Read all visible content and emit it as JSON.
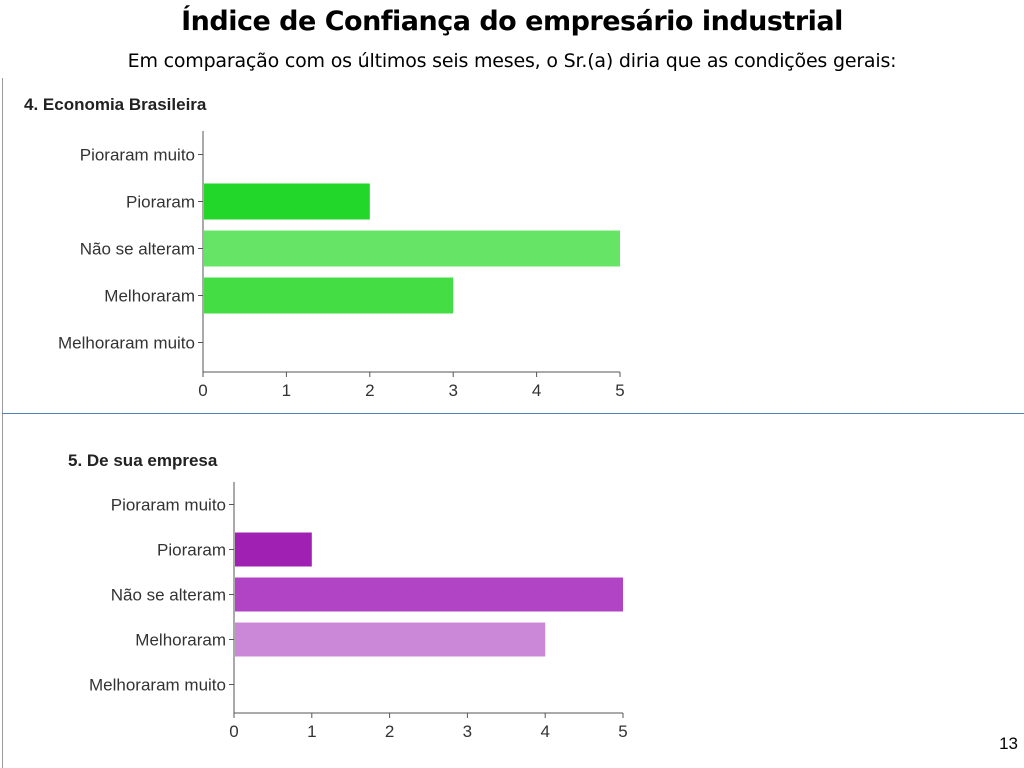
{
  "slide": {
    "title": "Índice de Confiança do empresário industrial",
    "subtitle": "Em comparação com os últimos seis meses, o Sr.(a) diria que as condições gerais:",
    "page_number": "13"
  },
  "chart_data": [
    {
      "type": "bar",
      "orientation": "horizontal",
      "title": "4. Economia Brasileira",
      "categories": [
        "Pioraram muito",
        "Pioraram",
        "Não se alteram",
        "Melhoraram",
        "Melhoraram muito"
      ],
      "values": [
        0,
        2,
        5,
        3,
        0
      ],
      "colors": [
        "#22d62a",
        "#22d62a",
        "#66e466",
        "#44dd44",
        "#44dd44"
      ],
      "xlim": [
        0,
        5
      ],
      "xticks": [
        0,
        1,
        2,
        3,
        4,
        5
      ],
      "grid": false
    },
    {
      "type": "bar",
      "orientation": "horizontal",
      "title": "5. De sua empresa",
      "categories": [
        "Pioraram muito",
        "Pioraram",
        "Não se alteram",
        "Melhoraram",
        "Melhoraram muito"
      ],
      "values": [
        0,
        1,
        5,
        4,
        0
      ],
      "colors": [
        "#a020b4",
        "#a020b4",
        "#b044c4",
        "#cc88d8",
        "#cc88d8"
      ],
      "xlim": [
        0,
        5
      ],
      "xticks": [
        0,
        1,
        2,
        3,
        4,
        5
      ],
      "grid": false
    }
  ]
}
